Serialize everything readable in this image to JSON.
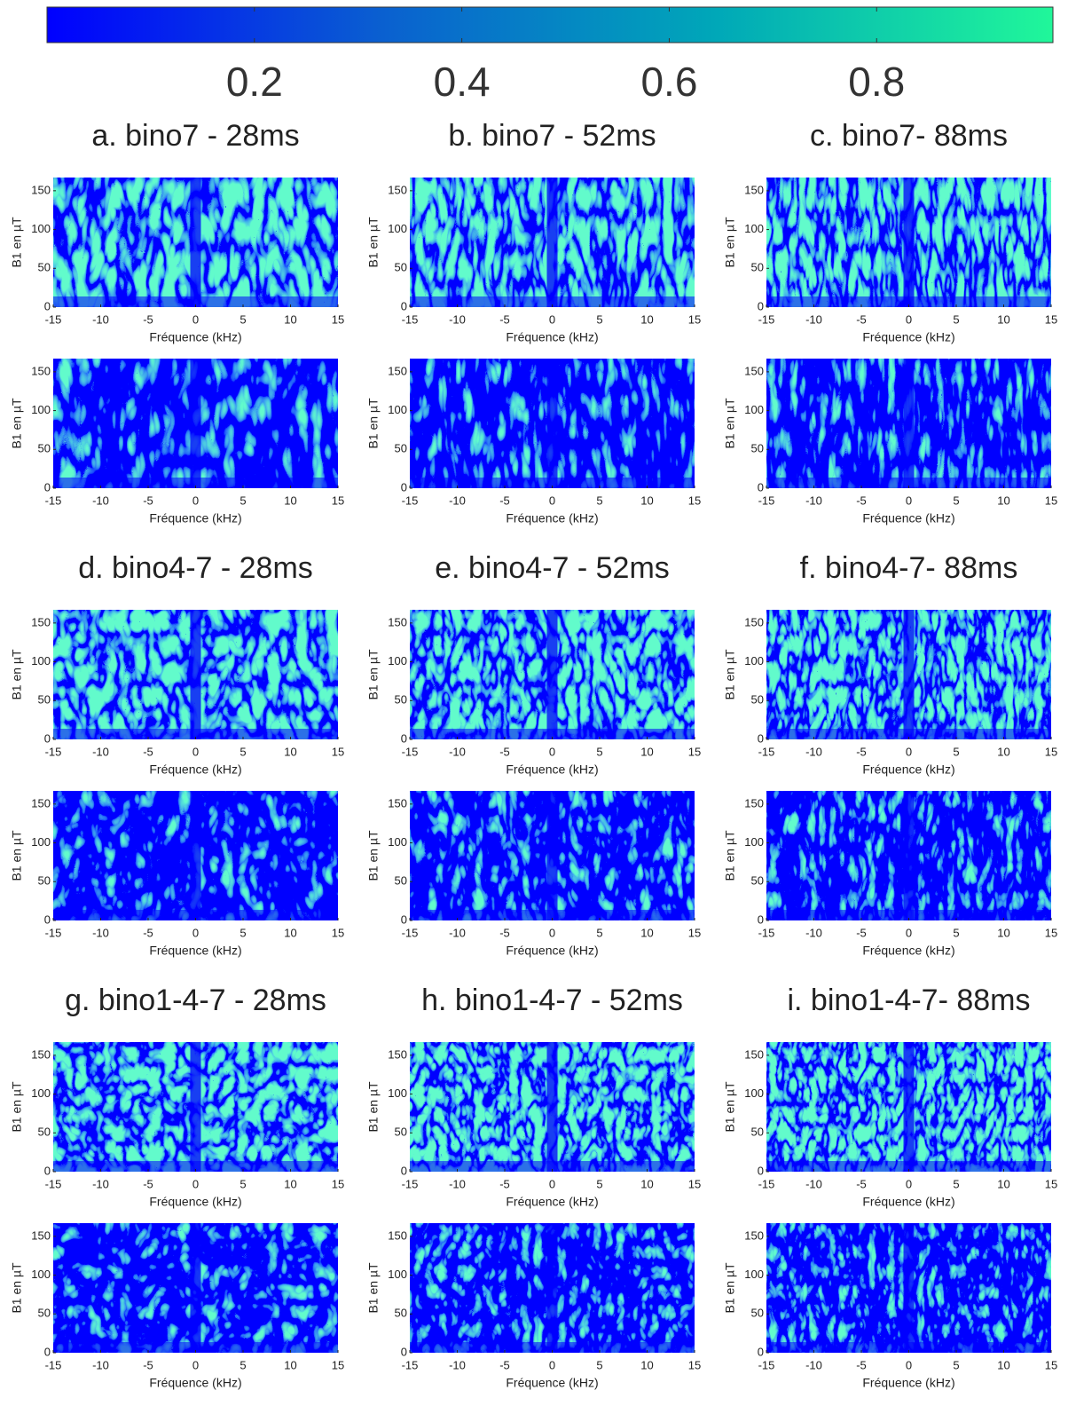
{
  "chart_data": [
    {
      "type": "colorbar",
      "clim": [
        0,
        0.97
      ],
      "ticks": [
        0.2,
        0.4,
        0.6,
        0.8
      ],
      "colormap": [
        "#0000ff",
        "#0a60d0",
        "#00a8b8",
        "#20f79a"
      ]
    },
    {
      "type": "heatmap",
      "title": "a. bino7 - 28ms",
      "xlabel": "Fréquence (kHz)",
      "ylabel": "B1 en µT",
      "xlim": [
        -15,
        15
      ],
      "ylim": [
        0,
        167
      ],
      "xticks": [
        -15,
        -10,
        -5,
        0,
        5,
        10,
        15
      ],
      "yticks": [
        0,
        50,
        100,
        150
      ]
    },
    {
      "type": "heatmap",
      "title": "b. bino7 - 52ms",
      "xlabel": "Fréquence (kHz)",
      "ylabel": "B1 en µT",
      "xlim": [
        -15,
        15
      ],
      "ylim": [
        0,
        167
      ],
      "xticks": [
        -15,
        -10,
        -5,
        0,
        5,
        10,
        15
      ],
      "yticks": [
        0,
        50,
        100,
        150
      ]
    },
    {
      "type": "heatmap",
      "title": "c. bino7- 88ms",
      "xlabel": "Fréquence (kHz)",
      "ylabel": "B1 en µT",
      "xlim": [
        -15,
        15
      ],
      "ylim": [
        0,
        167
      ],
      "xticks": [
        -15,
        -10,
        -5,
        0,
        5,
        10,
        15
      ],
      "yticks": [
        0,
        50,
        100,
        150
      ]
    },
    {
      "type": "heatmap",
      "title": "d. bino4-7 - 28ms",
      "xlabel": "Fréquence (kHz)",
      "ylabel": "B1 en µT",
      "xlim": [
        -15,
        15
      ],
      "ylim": [
        0,
        167
      ],
      "xticks": [
        -15,
        -10,
        -5,
        0,
        5,
        10,
        15
      ],
      "yticks": [
        0,
        50,
        100,
        150
      ]
    },
    {
      "type": "heatmap",
      "title": "e. bino4-7 - 52ms",
      "xlabel": "Fréquence (kHz)",
      "ylabel": "B1 en µT",
      "xlim": [
        -15,
        15
      ],
      "ylim": [
        0,
        167
      ],
      "xticks": [
        -15,
        -10,
        -5,
        0,
        5,
        10,
        15
      ],
      "yticks": [
        0,
        50,
        100,
        150
      ]
    },
    {
      "type": "heatmap",
      "title": "f. bino4-7- 88ms",
      "xlabel": "Fréquence (kHz)",
      "ylabel": "B1 en µT",
      "xlim": [
        -15,
        15
      ],
      "ylim": [
        0,
        167
      ],
      "xticks": [
        -15,
        -10,
        -5,
        0,
        5,
        10,
        15
      ],
      "yticks": [
        0,
        50,
        100,
        150
      ]
    },
    {
      "type": "heatmap",
      "title": "g. bino1-4-7 - 28ms",
      "xlabel": "Fréquence (kHz)",
      "ylabel": "B1 en µT",
      "xlim": [
        -15,
        15
      ],
      "ylim": [
        0,
        167
      ],
      "xticks": [
        -15,
        -10,
        -5,
        0,
        5,
        10,
        15
      ],
      "yticks": [
        0,
        50,
        100,
        150
      ]
    },
    {
      "type": "heatmap",
      "title": "h. bino1-4-7 - 52ms",
      "xlabel": "Fréquence (kHz)",
      "ylabel": "B1 en µT",
      "xlim": [
        -15,
        15
      ],
      "ylim": [
        0,
        167
      ],
      "xticks": [
        -15,
        -10,
        -5,
        0,
        5,
        10,
        15
      ],
      "yticks": [
        0,
        50,
        100,
        150
      ]
    },
    {
      "type": "heatmap",
      "title": "i. bino1-4-7- 88ms",
      "xlabel": "Fréquence (kHz)",
      "ylabel": "B1 en µT",
      "xlim": [
        -15,
        15
      ],
      "ylim": [
        0,
        167
      ],
      "xticks": [
        -15,
        -10,
        -5,
        0,
        5,
        10,
        15
      ],
      "yticks": [
        0,
        50,
        100,
        150
      ]
    }
  ]
}
